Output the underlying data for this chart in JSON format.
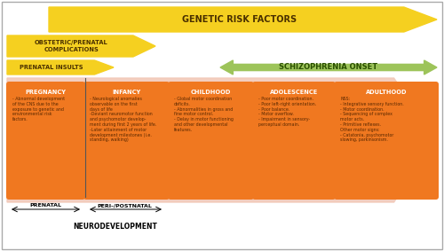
{
  "bg_color": "#ffffff",
  "border_color": "#cccccc",
  "arrow_salmon": "#f2c9b8",
  "arrow_yellow": "#f5d020",
  "arrow_green": "#9dc45a",
  "box_orange": "#f07820",
  "box_text_color": "#5a2800",
  "dark_brown": "#5a3000",
  "genetic_risk_text": "GENETIC RISK FACTORS",
  "obstetric_text": "OBSTETRIC/PRENATAL\nCOMPLICATIONS",
  "prenatal_insults_text": "PRENATAL INSULTS",
  "schizophrenia_text": "SCHIZOPHRENIA ONSET",
  "neurodevelopment_text": "NEURODEVELOPMENT",
  "prenatal_label": "PRENATAL",
  "peripostnatal_label": "PERI-/POSTNATAL",
  "boxes": [
    {
      "title": "PREGNANCY",
      "text": "- Abnormal development\nof the CNS due to the\nexposure to genetic and\nenvironmental risk\nfactors."
    },
    {
      "title": "INFANCY",
      "text": "- Neurological anomalies\nobservable on the first\ndays of life\n-Deviant neuromotor function\nand psychomotor develop-\nment during first 2 years of life.\n-Later attainment of motor\ndevelopment milestones (i.e.\nstanding, walking)"
    },
    {
      "title": "CHILDHOOD",
      "text": "- Global motor coordination\ndeficits.\n- Abnormalities in gross and\nfine motor control.\n- Delay in motor functioning\nand other developmental\nfeatures."
    },
    {
      "title": "ADOLESCENCE",
      "text": "- Poor motor coordination.\n- Poor left-right orientation.\n- Poor balance.\n- Motor overflow.\n- Impairment in sensory-\nperceptual domain."
    },
    {
      "title": "ADULTHOOD",
      "text": "NSS:\n- Integrative sensory function.\n- Motor coordination.\n- Sequencing of complex\nmotor acts.\n- Primitive reflexes.\nOther motor signs:\n- Catatonia, psychomotor\nslowing, parkinsonism."
    }
  ]
}
